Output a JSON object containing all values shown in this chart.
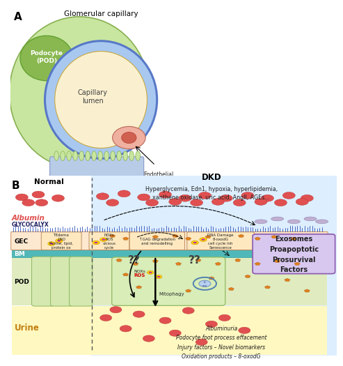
{
  "title_A": "Glomerular capillary",
  "label_A": "A",
  "label_B": "B",
  "podocyte_label": "Podocyte\n(POD)",
  "lumen_label": "Capillary\nlumen",
  "endothelial_label": "Endothelial\nCell (GEC)",
  "normal_label": "Normal",
  "dkd_label": "DKD",
  "dkd_subtitle": "Hyperglycemia, Edn1, hypoxia, hyperlipidemia,\nxanthene oxidase, uric acid, AngII, AGEs...",
  "albumin_label": "Albumin",
  "glycocalyx_label": "GLYCOCALYX",
  "gec_label": "GEC",
  "bm_label": "BM",
  "pod_label": "POD",
  "urine_label": "Urine",
  "exosomes_label": "Exosomes\nProapoptotic\nProsurvival\nFactors",
  "bottom_text": "Albuminuria\nPodocyte foot process effacement\nInjury factors – Novel biomarkers\nOxidation products – 8-oxodG",
  "gec_cell1_text": "↑Edema\n↓NO\nPurine, lipid,\nprotein ox",
  "gec_cell2_text": "NOXs\nROS\nvicious\ncycle",
  "gec_cell3_text": "↑GAG degradation\nand remodelling",
  "gec_cell4_text": "DNA Damage\n8-oxodG\ncell cycle inh\nSenescence",
  "qq_text": "??",
  "bg_white": "#ffffff",
  "bg_light_blue": "#ddeeff",
  "outer_pod_color": "#c8e6a0",
  "inner_pod_color": "#8ab850",
  "outer_capillary_color": "#a8c8f0",
  "inner_capillary_color": "#faf0d0",
  "endothelial_cell_color": "#f0b0a0",
  "gec_row_color": "#fde8d0",
  "bm_color": "#50b8b8",
  "pod_row_color": "#e0ecc0",
  "urine_color": "#fffacc",
  "albumin_color": "#e05050",
  "orange_particle_color": "#e08020",
  "exo_box_color": "#d8c8f0",
  "exo_border_color": "#9060b0"
}
